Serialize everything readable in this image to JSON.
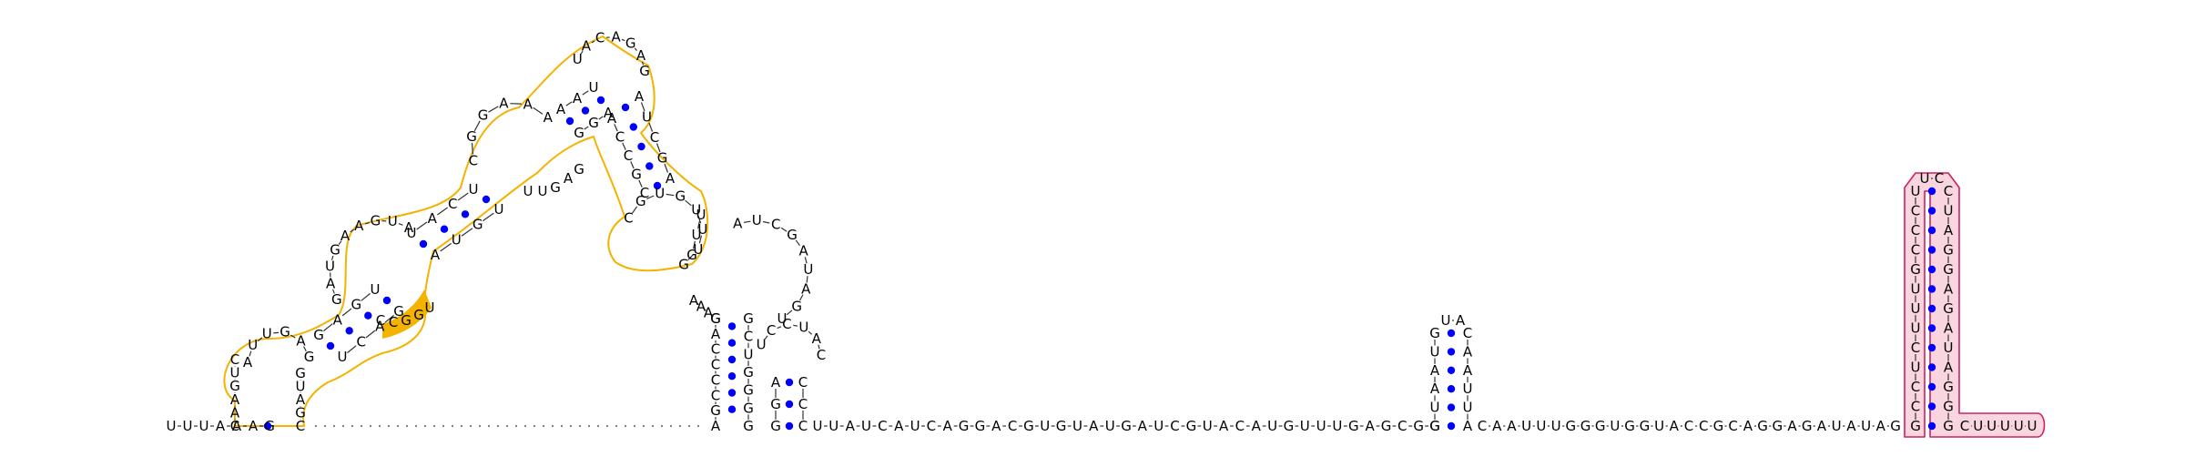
{
  "title": "",
  "five_prime_tail": "UUUAAAG",
  "linker": "UUAUCAUCAGGACGUGUAUGAUCGUACAUGUUUGAGCGG",
  "linker2": "CAAUUUGGGUGGUACCGCAGGAGAUAUAG",
  "three_prime_tail": "CUUUUU",
  "highlight_colors": {
    "orange_region": "#f3b300",
    "pink_region": "#f9d5e0",
    "pink_outline": "#d02060",
    "base_pair": "#0000ff"
  },
  "domains": {
    "orange_module": {
      "stem1_left": "CAAGUC",
      "stem1_right": "CGAUG",
      "bulge_loop": "AUUGAG",
      "loop2": "GAUGAAGUA",
      "loop3": "CGGAAA",
      "apical": "UACAGAG",
      "inner_loop": "CGUGUUUG",
      "three_way_text": "CCGGU"
    },
    "black_hairpin_a": {
      "stem_left": "AGCCCCAG",
      "stem_right": "GGGGUCG",
      "loop": "AUCGAUAGU"
    },
    "black_hairpin_b": {
      "stem_left": "GGA",
      "stem_right": "CCC",
      "loop": "UCCUAC"
    },
    "small_hairpin": {
      "stem_left": "GUAAUG",
      "stem_right": "AUUAAC",
      "loop": "UA"
    },
    "pink_hairpin": {
      "stem_left": "GCCUCUUUGCCCU",
      "stem_right": "GGGAUAGAGGAUC",
      "loop": "UC"
    }
  }
}
